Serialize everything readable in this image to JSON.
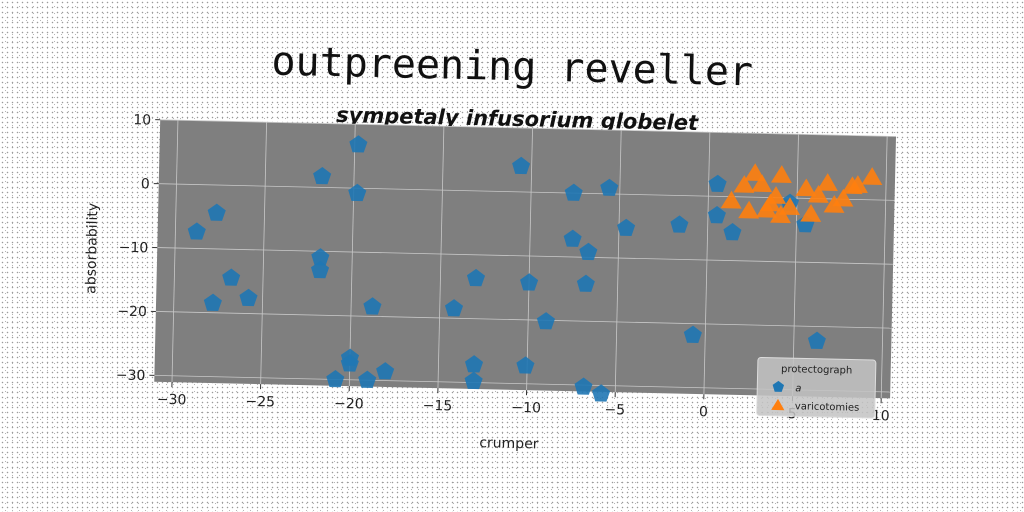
{
  "title": "outpreening reveller",
  "subtitle": "sympetaly infusorium globelet",
  "colors": {
    "plot_bg": "#7f7f7f",
    "grid": "#c8c8c8",
    "series_a": "#1f77b4",
    "series_b": "#ff7f0e"
  },
  "chart_data": {
    "type": "scatter",
    "title": "sympetaly infusorium globelet",
    "xlabel": "crumper",
    "ylabel": "absorbability",
    "xlim": [
      -31,
      10.5
    ],
    "ylim": [
      -31,
      10
    ],
    "xticks": [
      -30,
      -25,
      -20,
      -15,
      -10,
      -5,
      0,
      5,
      10
    ],
    "yticks": [
      -30,
      -20,
      -10,
      0,
      10
    ],
    "xtick_labels": [
      "−30",
      "−25",
      "−20",
      "−15",
      "−10",
      "−5",
      "0",
      "5",
      "10"
    ],
    "ytick_labels": [
      "−30",
      "−20",
      "−10",
      "0",
      "10"
    ],
    "grid": true,
    "legend": {
      "title": "protectograph",
      "placement": "lower-right"
    },
    "series": [
      {
        "name": "a",
        "marker": "pentagon",
        "color": "#1f77b4",
        "points": [
          [
            -28.8,
            -7.4
          ],
          [
            -27.7,
            -4.4
          ],
          [
            -27.8,
            -18.5
          ],
          [
            -26.8,
            -14.5
          ],
          [
            -25.8,
            -17.6
          ],
          [
            -21.8,
            1.7
          ],
          [
            -21.8,
            -11.0
          ],
          [
            -21.8,
            -13.0
          ],
          [
            -19.8,
            6.8
          ],
          [
            -19.8,
            -0.8
          ],
          [
            -20.0,
            -26.6
          ],
          [
            -20.0,
            -27.5
          ],
          [
            -20.8,
            -30.0
          ],
          [
            -19.0,
            -30.0
          ],
          [
            -18.8,
            -18.5
          ],
          [
            -18.0,
            -28.6
          ],
          [
            -14.2,
            -18.5
          ],
          [
            -13.0,
            -13.7
          ],
          [
            -13.0,
            -27.2
          ],
          [
            -13.0,
            -29.8
          ],
          [
            -10.6,
            4.0
          ],
          [
            -10.0,
            -14.2
          ],
          [
            -10.1,
            -27.2
          ],
          [
            -9.0,
            -20.2
          ],
          [
            -7.6,
            0.0
          ],
          [
            -7.6,
            -7.2
          ],
          [
            -6.7,
            -9.2
          ],
          [
            -6.8,
            -14.2
          ],
          [
            -6.8,
            -30.3
          ],
          [
            -5.8,
            -31.3
          ],
          [
            -5.6,
            0.9
          ],
          [
            -4.6,
            -5.3
          ],
          [
            -1.6,
            -4.6
          ],
          [
            -0.7,
            -21.8
          ],
          [
            0.5,
            1.9
          ],
          [
            0.5,
            -3.0
          ],
          [
            1.4,
            -5.6
          ],
          [
            4.6,
            -0.8
          ],
          [
            5.5,
            -4.1
          ],
          [
            6.3,
            -22.3
          ]
        ]
      },
      {
        "name": "varicotomies",
        "marker": "triangle",
        "color": "#ff7f0e",
        "points": [
          [
            1.3,
            -0.8
          ],
          [
            2.0,
            1.7
          ],
          [
            2.6,
            3.6
          ],
          [
            3.0,
            1.9
          ],
          [
            2.3,
            -2.3
          ],
          [
            3.3,
            -2.1
          ],
          [
            3.8,
            0.1
          ],
          [
            4.1,
            3.4
          ],
          [
            4.6,
            -1.6
          ],
          [
            5.5,
            1.4
          ],
          [
            6.2,
            0.4
          ],
          [
            7.1,
            -1.1
          ],
          [
            7.6,
            -0.1
          ],
          [
            8.1,
            1.9
          ],
          [
            9.2,
            3.4
          ],
          [
            5.8,
            -2.6
          ],
          [
            4.1,
            -2.9
          ],
          [
            8.4,
            2.1
          ],
          [
            6.7,
            2.3
          ],
          [
            3.5,
            -1.1
          ]
        ]
      }
    ]
  }
}
